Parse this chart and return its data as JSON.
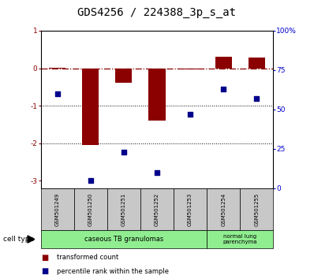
{
  "title": "GDS4256 / 224388_3p_s_at",
  "samples": [
    "GSM501249",
    "GSM501250",
    "GSM501251",
    "GSM501252",
    "GSM501253",
    "GSM501254",
    "GSM501255"
  ],
  "transformed_count": [
    0.02,
    -2.05,
    -0.38,
    -1.4,
    -0.02,
    0.3,
    0.28
  ],
  "percentile_rank": [
    60,
    5,
    23,
    10,
    47,
    63,
    57
  ],
  "ylim_left": [
    -3.2,
    1.0
  ],
  "ylim_right": [
    0,
    100
  ],
  "yticks_left": [
    -3,
    -2,
    -1,
    0,
    1
  ],
  "yticks_right": [
    0,
    25,
    50,
    75,
    100
  ],
  "ytick_labels_right": [
    "0",
    "25",
    "50",
    "75",
    "100%"
  ],
  "bar_color": "#8B0000",
  "scatter_color": "#00008B",
  "hline_color": "#8B0000",
  "dotted_lines": [
    -1,
    -2
  ],
  "group1_label": "caseous TB granulomas",
  "group2_label": "normal lung\nparenchyma",
  "group1_color": "#90EE90",
  "group2_color": "#90EE90",
  "cell_type_label": "cell type",
  "legend_red_label": "transformed count",
  "legend_blue_label": "percentile rank within the sample",
  "bar_width": 0.5,
  "sample_bg_color": "#C8C8C8",
  "tick_label_fontsize": 6.5,
  "title_fontsize": 10
}
